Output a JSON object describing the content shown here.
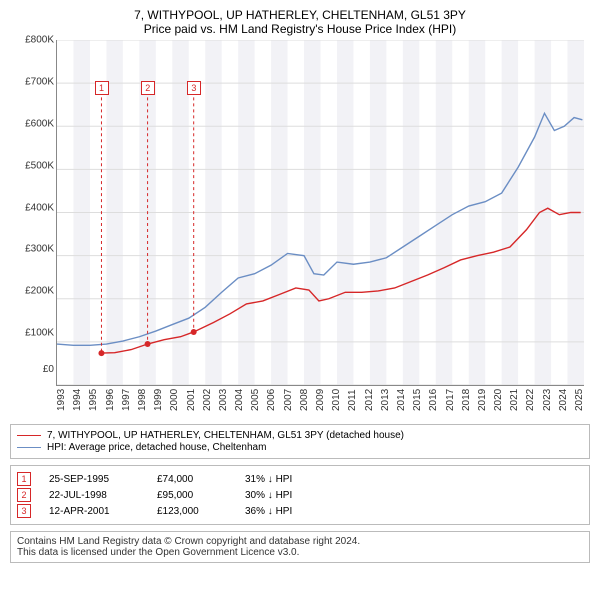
{
  "title": "7, WITHYPOOL, UP HATHERLEY, CHELTENHAM, GL51 3PY",
  "subtitle": "Price paid vs. HM Land Registry's House Price Index (HPI)",
  "chart": {
    "type": "line",
    "background_color": "#ffffff",
    "grid_color": "#dddddd",
    "alt_band_color": "#f2f2f6",
    "axis_color": "#888888",
    "x_years": [
      "1993",
      "1994",
      "1995",
      "1996",
      "1997",
      "1998",
      "1999",
      "2000",
      "2001",
      "2002",
      "2003",
      "2004",
      "2005",
      "2006",
      "2007",
      "2008",
      "2009",
      "2010",
      "2011",
      "2012",
      "2013",
      "2014",
      "2015",
      "2016",
      "2017",
      "2018",
      "2019",
      "2020",
      "2021",
      "2022",
      "2023",
      "2024",
      "2025"
    ],
    "ylim": [
      0,
      800000
    ],
    "ytick_step": 100000,
    "ytick_labels": [
      "£800K",
      "£700K",
      "£600K",
      "£500K",
      "£400K",
      "£300K",
      "£200K",
      "£100K",
      "£0"
    ],
    "x_fontsize": 10,
    "y_fontsize": 10,
    "series": [
      {
        "name": "property_price",
        "color": "#d62728",
        "line_width": 1.4,
        "points": [
          [
            1995.7,
            74000
          ],
          [
            1996.5,
            75000
          ],
          [
            1997.5,
            82000
          ],
          [
            1998.5,
            95000
          ],
          [
            1999.5,
            105000
          ],
          [
            2000.5,
            112000
          ],
          [
            2001.3,
            123000
          ],
          [
            2002.5,
            145000
          ],
          [
            2003.5,
            165000
          ],
          [
            2004.5,
            188000
          ],
          [
            2005.5,
            195000
          ],
          [
            2006.5,
            210000
          ],
          [
            2007.5,
            225000
          ],
          [
            2008.3,
            220000
          ],
          [
            2008.9,
            195000
          ],
          [
            2009.5,
            200000
          ],
          [
            2010.5,
            215000
          ],
          [
            2011.5,
            215000
          ],
          [
            2012.5,
            218000
          ],
          [
            2013.5,
            225000
          ],
          [
            2014.5,
            240000
          ],
          [
            2015.5,
            255000
          ],
          [
            2016.5,
            272000
          ],
          [
            2017.5,
            290000
          ],
          [
            2018.5,
            300000
          ],
          [
            2019.5,
            308000
          ],
          [
            2020.5,
            320000
          ],
          [
            2021.5,
            360000
          ],
          [
            2022.3,
            400000
          ],
          [
            2022.8,
            410000
          ],
          [
            2023.5,
            395000
          ],
          [
            2024.2,
            400000
          ],
          [
            2024.8,
            400000
          ]
        ]
      },
      {
        "name": "hpi",
        "color": "#6b8ec4",
        "line_width": 1.4,
        "points": [
          [
            1993.0,
            95000
          ],
          [
            1994.0,
            92000
          ],
          [
            1995.0,
            92000
          ],
          [
            1996.0,
            95000
          ],
          [
            1997.0,
            102000
          ],
          [
            1998.0,
            112000
          ],
          [
            1999.0,
            125000
          ],
          [
            2000.0,
            140000
          ],
          [
            2001.0,
            155000
          ],
          [
            2002.0,
            180000
          ],
          [
            2003.0,
            215000
          ],
          [
            2004.0,
            248000
          ],
          [
            2005.0,
            258000
          ],
          [
            2006.0,
            278000
          ],
          [
            2007.0,
            305000
          ],
          [
            2008.0,
            300000
          ],
          [
            2008.6,
            258000
          ],
          [
            2009.2,
            255000
          ],
          [
            2010.0,
            285000
          ],
          [
            2011.0,
            280000
          ],
          [
            2012.0,
            285000
          ],
          [
            2013.0,
            295000
          ],
          [
            2014.0,
            320000
          ],
          [
            2015.0,
            345000
          ],
          [
            2016.0,
            370000
          ],
          [
            2017.0,
            395000
          ],
          [
            2018.0,
            415000
          ],
          [
            2019.0,
            425000
          ],
          [
            2020.0,
            445000
          ],
          [
            2021.0,
            505000
          ],
          [
            2022.0,
            575000
          ],
          [
            2022.6,
            630000
          ],
          [
            2023.2,
            590000
          ],
          [
            2023.8,
            600000
          ],
          [
            2024.4,
            620000
          ],
          [
            2024.9,
            615000
          ]
        ]
      }
    ],
    "event_markers": [
      {
        "label": "1",
        "x_year": 1995.7,
        "point_y": 74000,
        "box_y": 690000,
        "color": "#d62728"
      },
      {
        "label": "2",
        "x_year": 1998.5,
        "point_y": 95000,
        "box_y": 690000,
        "color": "#d62728"
      },
      {
        "label": "3",
        "x_year": 2001.3,
        "point_y": 123000,
        "box_y": 690000,
        "color": "#d62728"
      }
    ]
  },
  "legend": {
    "items": [
      {
        "color": "#d62728",
        "label": "7, WITHYPOOL, UP HATHERLEY, CHELTENHAM, GL51 3PY (detached house)"
      },
      {
        "color": "#6b8ec4",
        "label": "HPI: Average price, detached house, Cheltenham"
      }
    ]
  },
  "events": [
    {
      "marker": "1",
      "date": "25-SEP-1995",
      "price": "£74,000",
      "delta": "31% ↓ HPI"
    },
    {
      "marker": "2",
      "date": "22-JUL-1998",
      "price": "£95,000",
      "delta": "30% ↓ HPI"
    },
    {
      "marker": "3",
      "date": "12-APR-2001",
      "price": "£123,000",
      "delta": "36% ↓ HPI"
    }
  ],
  "footer": {
    "line1": "Contains HM Land Registry data © Crown copyright and database right 2024.",
    "line2": "This data is licensed under the Open Government Licence v3.0."
  }
}
